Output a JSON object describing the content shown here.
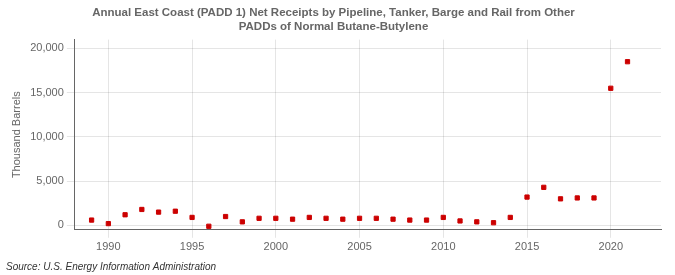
{
  "chart_data": {
    "type": "scatter",
    "title": "Annual East Coast (PADD 1) Net Receipts by Pipeline, Tanker, Barge and Rail from Other\nPADDs of Normal Butane-Butylene",
    "ylabel": "Thousand Barrels",
    "annotations": [
      "Source: U.S. Energy Information Administration"
    ],
    "x": [
      1989,
      1990,
      1991,
      1992,
      1993,
      1994,
      1995,
      1996,
      1997,
      1998,
      1999,
      2000,
      2001,
      2002,
      2003,
      2004,
      2005,
      2006,
      2007,
      2008,
      2009,
      2010,
      2011,
      2012,
      2013,
      2014,
      2015,
      2016,
      2017,
      2018,
      2019,
      2020,
      2021
    ],
    "values": [
      600,
      200,
      1200,
      1800,
      1500,
      1600,
      900,
      -100,
      1000,
      400,
      800,
      800,
      700,
      900,
      800,
      700,
      800,
      800,
      700,
      600,
      600,
      900,
      500,
      400,
      300,
      900,
      3200,
      4300,
      3000,
      3100,
      3100,
      15500,
      18500
    ],
    "color": "#cc0000",
    "marker": "square",
    "xlim": [
      1988,
      2023
    ],
    "xticks": [
      1990,
      1995,
      2000,
      2005,
      2010,
      2015,
      2020
    ],
    "ylim": [
      -500,
      21000
    ],
    "yticks": [
      0,
      {
        "value": 5000,
        "label": "5,000"
      },
      {
        "value": 10000,
        "label": "10,000"
      },
      {
        "value": 15000,
        "label": "15,000"
      },
      {
        "value": 20000,
        "label": "20,000"
      }
    ],
    "grid": true
  }
}
